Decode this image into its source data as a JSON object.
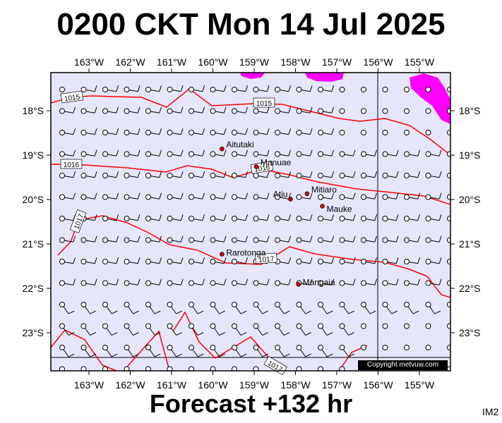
{
  "title": "0200 CKT Mon 14 Jul 2025",
  "footer": "Forecast +132 hr",
  "code": "IM2",
  "copyright": "Copyright metvuw.com",
  "colors": {
    "ocean": "#e6e6fa",
    "isobar": "#ff0000",
    "rain": "#ff00ff",
    "place_dot": "#cc0000",
    "wind": "#000000"
  },
  "axes": {
    "lon_labels": [
      "163°W",
      "162°W",
      "161°W",
      "160°W",
      "159°W",
      "158°W",
      "157°W",
      "156°W",
      "155°W"
    ],
    "lat_labels": [
      "18°S",
      "19°S",
      "20°S",
      "21°S",
      "22°S",
      "23°S"
    ],
    "lon_values": [
      -163,
      -162,
      -161,
      -160,
      -159,
      -158,
      -157,
      -156,
      -155
    ],
    "lat_values": [
      -18,
      -19,
      -20,
      -21,
      -22,
      -23
    ],
    "lon_range": [
      -163.8,
      -154.3
    ],
    "lat_range": [
      -23.8,
      -17.3
    ]
  },
  "places": [
    {
      "name": "Aitutaki",
      "lon": -159.78,
      "lat": -18.86
    },
    {
      "name": "Manuae",
      "lon": -158.95,
      "lat": -19.26
    },
    {
      "name": "Mitiaro",
      "lon": -157.72,
      "lat": -19.87
    },
    {
      "name": "Atiu",
      "lon": -158.12,
      "lat": -19.99
    },
    {
      "name": "Mauke",
      "lon": -157.35,
      "lat": -20.15
    },
    {
      "name": "Rarotonga",
      "lon": -159.78,
      "lat": -21.23
    },
    {
      "name": "Mangaia",
      "lon": -157.93,
      "lat": -21.91
    }
  ],
  "isobar_labels": [
    "1015",
    "1015",
    "1016",
    "1016",
    "1017",
    "1017",
    "1017"
  ]
}
